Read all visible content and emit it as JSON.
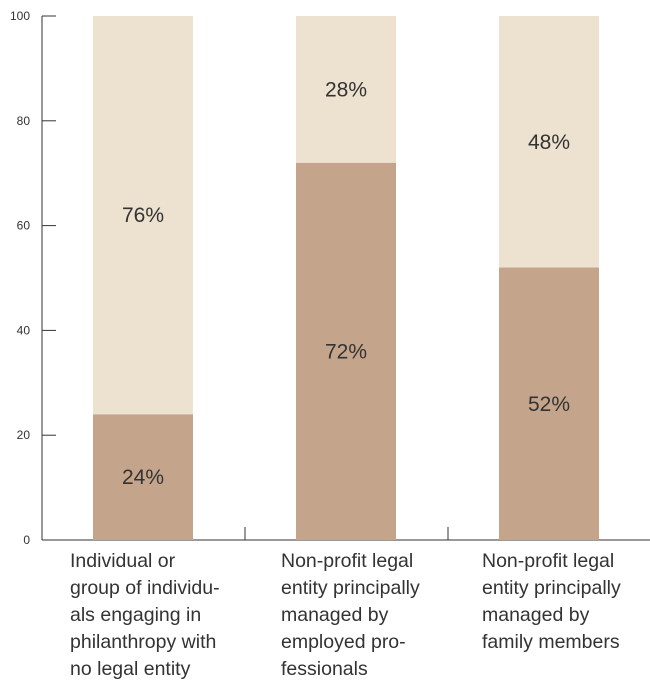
{
  "chart_data": {
    "type": "bar",
    "stacked": true,
    "categories": [
      "Individual or\ngroup of individu-\nals engaging in\nphilanthropy with\nno legal entity",
      "Non-profit legal\nentity principally\nmanaged by\nemployed pro-\nfessionals",
      "Non-profit legal\nentity principally\nmanaged by\nfamily members"
    ],
    "series": [
      {
        "values": [
          24,
          72,
          52
        ],
        "labels": [
          "24%",
          "72%",
          "52%"
        ],
        "color": "#c4a58c"
      },
      {
        "values": [
          76,
          28,
          48
        ],
        "labels": [
          "76%",
          "28%",
          "48%"
        ],
        "color": "#ede1cf"
      }
    ],
    "ylim": [
      0,
      100
    ],
    "yticks": [
      "0",
      "20",
      "40",
      "60",
      "80",
      "100"
    ],
    "title": "",
    "xlabel": "",
    "ylabel": "",
    "grid": false,
    "legend": "none"
  }
}
